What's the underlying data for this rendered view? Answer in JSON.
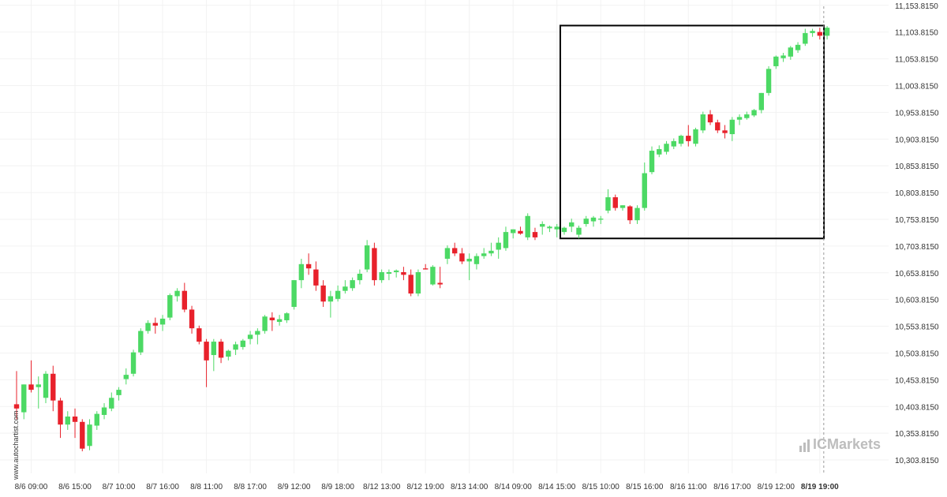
{
  "watermark": {
    "side_text": "www.autochartist.com",
    "logo_text": "ICMarkets"
  },
  "chart_data": {
    "type": "candlestick",
    "title": "",
    "xlabel": "",
    "ylabel": "",
    "ylim": [
      10278.815,
      11163.815
    ],
    "y_ticks": [
      "11,153.8150",
      "11,103.8150",
      "11,053.8150",
      "11,003.8150",
      "10,953.8150",
      "10,903.8150",
      "10,853.8150",
      "10,803.8150",
      "10,753.8150",
      "10,703.8150",
      "10,653.8150",
      "10,603.8150",
      "10,553.8150",
      "10,503.8150",
      "10,453.8150",
      "10,403.8150",
      "10,353.8150",
      "10,303.8150"
    ],
    "y_tick_values": [
      11153.815,
      11103.815,
      11053.815,
      11003.815,
      10953.815,
      10903.815,
      10853.815,
      10803.815,
      10753.815,
      10703.815,
      10653.815,
      10603.815,
      10553.815,
      10503.815,
      10453.815,
      10403.815,
      10353.815,
      10303.815
    ],
    "x_ticks": [
      {
        "label": "8/6 09:00",
        "index": 2
      },
      {
        "label": "8/6 15:00",
        "index": 8
      },
      {
        "label": "8/7 10:00",
        "index": 14
      },
      {
        "label": "8/7 16:00",
        "index": 20
      },
      {
        "label": "8/8 11:00",
        "index": 26
      },
      {
        "label": "8/8 17:00",
        "index": 32
      },
      {
        "label": "8/9 12:00",
        "index": 38
      },
      {
        "label": "8/9 18:00",
        "index": 44
      },
      {
        "label": "8/12 13:00",
        "index": 50
      },
      {
        "label": "8/12 19:00",
        "index": 56
      },
      {
        "label": "8/13 14:00",
        "index": 62
      },
      {
        "label": "8/14 09:00",
        "index": 68
      },
      {
        "label": "8/14 15:00",
        "index": 74
      },
      {
        "label": "8/15 10:00",
        "index": 80
      },
      {
        "label": "8/15 16:00",
        "index": 86
      },
      {
        "label": "8/16 11:00",
        "index": 92
      },
      {
        "label": "8/16 17:00",
        "index": 98
      },
      {
        "label": "8/19 12:00",
        "index": 104
      },
      {
        "label": "8/19 19:00",
        "index": 110,
        "bold": true
      }
    ],
    "candles": [
      {
        "o": 10408,
        "h": 10470,
        "l": 10380,
        "c": 10400
      },
      {
        "o": 10393,
        "h": 10445,
        "l": 10380,
        "c": 10445
      },
      {
        "o": 10445,
        "h": 10490,
        "l": 10430,
        "c": 10435
      },
      {
        "o": 10440,
        "h": 10460,
        "l": 10400,
        "c": 10445
      },
      {
        "o": 10420,
        "h": 10470,
        "l": 10410,
        "c": 10465
      },
      {
        "o": 10465,
        "h": 10480,
        "l": 10395,
        "c": 10415
      },
      {
        "o": 10415,
        "h": 10420,
        "l": 10345,
        "c": 10370
      },
      {
        "o": 10370,
        "h": 10395,
        "l": 10360,
        "c": 10385
      },
      {
        "o": 10385,
        "h": 10400,
        "l": 10345,
        "c": 10375
      },
      {
        "o": 10375,
        "h": 10380,
        "l": 10320,
        "c": 10325
      },
      {
        "o": 10330,
        "h": 10380,
        "l": 10322,
        "c": 10370
      },
      {
        "o": 10368,
        "h": 10395,
        "l": 10360,
        "c": 10390
      },
      {
        "o": 10388,
        "h": 10410,
        "l": 10380,
        "c": 10402
      },
      {
        "o": 10400,
        "h": 10430,
        "l": 10395,
        "c": 10420
      },
      {
        "o": 10425,
        "h": 10440,
        "l": 10415,
        "c": 10435
      },
      {
        "o": 10455,
        "h": 10475,
        "l": 10445,
        "c": 10463
      },
      {
        "o": 10465,
        "h": 10510,
        "l": 10460,
        "c": 10505
      },
      {
        "o": 10505,
        "h": 10550,
        "l": 10500,
        "c": 10545
      },
      {
        "o": 10545,
        "h": 10565,
        "l": 10540,
        "c": 10560
      },
      {
        "o": 10560,
        "h": 10570,
        "l": 10540,
        "c": 10555
      },
      {
        "o": 10557,
        "h": 10575,
        "l": 10545,
        "c": 10568
      },
      {
        "o": 10570,
        "h": 10615,
        "l": 10565,
        "c": 10612
      },
      {
        "o": 10610,
        "h": 10625,
        "l": 10600,
        "c": 10620
      },
      {
        "o": 10620,
        "h": 10635,
        "l": 10580,
        "c": 10585
      },
      {
        "o": 10585,
        "h": 10592,
        "l": 10540,
        "c": 10550
      },
      {
        "o": 10550,
        "h": 10555,
        "l": 10520,
        "c": 10525
      },
      {
        "o": 10525,
        "h": 10530,
        "l": 10440,
        "c": 10490
      },
      {
        "o": 10500,
        "h": 10530,
        "l": 10470,
        "c": 10525
      },
      {
        "o": 10525,
        "h": 10530,
        "l": 10485,
        "c": 10495
      },
      {
        "o": 10497,
        "h": 10510,
        "l": 10490,
        "c": 10508
      },
      {
        "o": 10510,
        "h": 10525,
        "l": 10500,
        "c": 10520
      },
      {
        "o": 10515,
        "h": 10530,
        "l": 10510,
        "c": 10527
      },
      {
        "o": 10530,
        "h": 10545,
        "l": 10520,
        "c": 10538
      },
      {
        "o": 10538,
        "h": 10550,
        "l": 10520,
        "c": 10545
      },
      {
        "o": 10545,
        "h": 10575,
        "l": 10540,
        "c": 10572
      },
      {
        "o": 10570,
        "h": 10580,
        "l": 10545,
        "c": 10565
      },
      {
        "o": 10562,
        "h": 10575,
        "l": 10555,
        "c": 10567
      },
      {
        "o": 10565,
        "h": 10580,
        "l": 10560,
        "c": 10578
      },
      {
        "o": 10590,
        "h": 10640,
        "l": 10585,
        "c": 10640
      },
      {
        "o": 10640,
        "h": 10680,
        "l": 10625,
        "c": 10670
      },
      {
        "o": 10670,
        "h": 10690,
        "l": 10650,
        "c": 10662
      },
      {
        "o": 10660,
        "h": 10675,
        "l": 10620,
        "c": 10630
      },
      {
        "o": 10630,
        "h": 10640,
        "l": 10590,
        "c": 10600
      },
      {
        "o": 10600,
        "h": 10620,
        "l": 10570,
        "c": 10610
      },
      {
        "o": 10605,
        "h": 10630,
        "l": 10600,
        "c": 10620
      },
      {
        "o": 10620,
        "h": 10640,
        "l": 10615,
        "c": 10628
      },
      {
        "o": 10625,
        "h": 10645,
        "l": 10620,
        "c": 10640
      },
      {
        "o": 10640,
        "h": 10660,
        "l": 10632,
        "c": 10652
      },
      {
        "o": 10660,
        "h": 10715,
        "l": 10655,
        "c": 10705
      },
      {
        "o": 10700,
        "h": 10710,
        "l": 10630,
        "c": 10640
      },
      {
        "o": 10640,
        "h": 10660,
        "l": 10635,
        "c": 10655
      },
      {
        "o": 10652,
        "h": 10660,
        "l": 10640,
        "c": 10655
      },
      {
        "o": 10655,
        "h": 10660,
        "l": 10645,
        "c": 10658
      },
      {
        "o": 10655,
        "h": 10665,
        "l": 10640,
        "c": 10650
      },
      {
        "o": 10650,
        "h": 10660,
        "l": 10610,
        "c": 10615
      },
      {
        "o": 10615,
        "h": 10660,
        "l": 10610,
        "c": 10655
      },
      {
        "o": 10662,
        "h": 10670,
        "l": 10660,
        "c": 10660
      },
      {
        "o": 10632,
        "h": 10668,
        "l": 10630,
        "c": 10665
      },
      {
        "o": 10635,
        "h": 10665,
        "l": 10625,
        "c": 10632
      },
      {
        "o": 10680,
        "h": 10705,
        "l": 10670,
        "c": 10700
      },
      {
        "o": 10700,
        "h": 10710,
        "l": 10685,
        "c": 10690
      },
      {
        "o": 10690,
        "h": 10700,
        "l": 10670,
        "c": 10675
      },
      {
        "o": 10675,
        "h": 10690,
        "l": 10640,
        "c": 10680
      },
      {
        "o": 10670,
        "h": 10690,
        "l": 10660,
        "c": 10685
      },
      {
        "o": 10685,
        "h": 10700,
        "l": 10680,
        "c": 10690
      },
      {
        "o": 10690,
        "h": 10710,
        "l": 10685,
        "c": 10695
      },
      {
        "o": 10697,
        "h": 10720,
        "l": 10680,
        "c": 10710
      },
      {
        "o": 10700,
        "h": 10740,
        "l": 10695,
        "c": 10730
      },
      {
        "o": 10728,
        "h": 10735,
        "l": 10718,
        "c": 10735
      },
      {
        "o": 10732,
        "h": 10740,
        "l": 10725,
        "c": 10727
      },
      {
        "o": 10720,
        "h": 10765,
        "l": 10715,
        "c": 10760
      },
      {
        "o": 10730,
        "h": 10738,
        "l": 10715,
        "c": 10720
      },
      {
        "o": 10740,
        "h": 10750,
        "l": 10725,
        "c": 10745
      },
      {
        "o": 10737,
        "h": 10742,
        "l": 10730,
        "c": 10740
      },
      {
        "o": 10735,
        "h": 10745,
        "l": 10720,
        "c": 10740
      },
      {
        "o": 10730,
        "h": 10740,
        "l": 10725,
        "c": 10738
      },
      {
        "o": 10740,
        "h": 10755,
        "l": 10730,
        "c": 10748
      },
      {
        "o": 10725,
        "h": 10742,
        "l": 10718,
        "c": 10738
      },
      {
        "o": 10745,
        "h": 10760,
        "l": 10740,
        "c": 10755
      },
      {
        "o": 10750,
        "h": 10760,
        "l": 10740,
        "c": 10757
      },
      {
        "o": 10753,
        "h": 10760,
        "l": 10745,
        "c": 10755
      },
      {
        "o": 10770,
        "h": 10810,
        "l": 10765,
        "c": 10795
      },
      {
        "o": 10795,
        "h": 10800,
        "l": 10770,
        "c": 10775
      },
      {
        "o": 10775,
        "h": 10780,
        "l": 10770,
        "c": 10780
      },
      {
        "o": 10778,
        "h": 10780,
        "l": 10745,
        "c": 10752
      },
      {
        "o": 10752,
        "h": 10780,
        "l": 10745,
        "c": 10775
      },
      {
        "o": 10775,
        "h": 10860,
        "l": 10770,
        "c": 10840
      },
      {
        "o": 10842,
        "h": 10890,
        "l": 10838,
        "c": 10882
      },
      {
        "o": 10875,
        "h": 10892,
        "l": 10870,
        "c": 10885
      },
      {
        "o": 10880,
        "h": 10900,
        "l": 10875,
        "c": 10895
      },
      {
        "o": 10890,
        "h": 10905,
        "l": 10885,
        "c": 10900
      },
      {
        "o": 10895,
        "h": 10912,
        "l": 10890,
        "c": 10910
      },
      {
        "o": 10910,
        "h": 10930,
        "l": 10890,
        "c": 10900
      },
      {
        "o": 10895,
        "h": 10925,
        "l": 10890,
        "c": 10922
      },
      {
        "o": 10920,
        "h": 10955,
        "l": 10915,
        "c": 10950
      },
      {
        "o": 10950,
        "h": 10958,
        "l": 10930,
        "c": 10935
      },
      {
        "o": 10935,
        "h": 10940,
        "l": 10915,
        "c": 10920
      },
      {
        "o": 10920,
        "h": 10930,
        "l": 10905,
        "c": 10915
      },
      {
        "o": 10913,
        "h": 10945,
        "l": 10900,
        "c": 10940
      },
      {
        "o": 10940,
        "h": 10950,
        "l": 10930,
        "c": 10945
      },
      {
        "o": 10943,
        "h": 10955,
        "l": 10940,
        "c": 10950
      },
      {
        "o": 10948,
        "h": 10960,
        "l": 10945,
        "c": 10958
      },
      {
        "o": 10958,
        "h": 10990,
        "l": 10952,
        "c": 10990
      },
      {
        "o": 10990,
        "h": 11040,
        "l": 10985,
        "c": 11035
      },
      {
        "o": 11040,
        "h": 11060,
        "l": 11035,
        "c": 11058
      },
      {
        "o": 11055,
        "h": 11065,
        "l": 11048,
        "c": 11060
      },
      {
        "o": 11058,
        "h": 11078,
        "l": 11052,
        "c": 11075
      },
      {
        "o": 11070,
        "h": 11085,
        "l": 11065,
        "c": 11080
      },
      {
        "o": 11082,
        "h": 11110,
        "l": 11078,
        "c": 11102
      },
      {
        "o": 11102,
        "h": 11110,
        "l": 11095,
        "c": 11106
      },
      {
        "o": 11104,
        "h": 11112,
        "l": 11090,
        "c": 11097
      },
      {
        "o": 11097,
        "h": 11115,
        "l": 11090,
        "c": 11112
      }
    ],
    "pattern_box": {
      "start_index": 75,
      "end_index": 111,
      "high": 11116,
      "low": 10718
    },
    "colors": {
      "up": "#4cd964",
      "down": "#e8212b",
      "box": "#000000",
      "gridline": "#f2f2f2",
      "cursor": "#9a9a9a"
    }
  }
}
